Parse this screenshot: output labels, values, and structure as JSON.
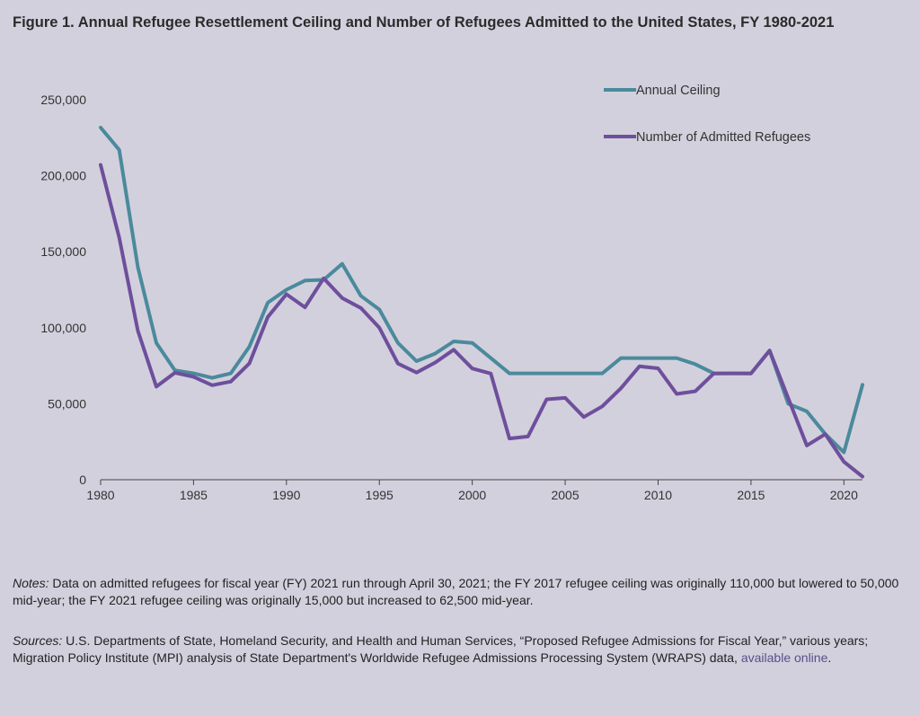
{
  "title": "Figure 1. Annual Refugee Resettlement Ceiling and Number of Refugees Admitted to the United States, FY 1980-2021",
  "notes": {
    "lead": "Notes:",
    "text": " Data on admitted refugees for fiscal year (FY) 2021 run through April 30, 2021; the FY 2017 refugee ceiling was originally 110,000 but lowered to 50,000 mid-year; the FY 2021 refugee ceiling was originally 15,000 but increased to 62,500 mid-year."
  },
  "sources": {
    "lead": "Sources:",
    "text": " U.S. Departments of State, Homeland Security, and Health and Human Services, “Proposed Refugee Admissions for Fiscal Year,” various years; Migration Policy Institute (MPI) analysis of State Department's Worldwide Refugee Admissions Processing System (WRAPS) data, ",
    "link_text": "available online",
    "end": "."
  },
  "chart_data": {
    "type": "line",
    "title": "Figure 1. Annual Refugee Resettlement Ceiling and Number of Refugees Admitted to the United States, FY 1980-2021",
    "xlabel": "",
    "ylabel": "",
    "x": [
      1980,
      1981,
      1982,
      1983,
      1984,
      1985,
      1986,
      1987,
      1988,
      1989,
      1990,
      1991,
      1992,
      1993,
      1994,
      1995,
      1996,
      1997,
      1998,
      1999,
      2000,
      2001,
      2002,
      2003,
      2004,
      2005,
      2006,
      2007,
      2008,
      2009,
      2010,
      2011,
      2012,
      2013,
      2014,
      2015,
      2016,
      2017,
      2018,
      2019,
      2020,
      2021
    ],
    "xlim": [
      1980,
      2021
    ],
    "ylim": [
      0,
      250000
    ],
    "x_ticks": [
      1980,
      1985,
      1990,
      1995,
      2000,
      2005,
      2010,
      2015,
      2020
    ],
    "x_tick_labels": [
      "1980",
      "1985",
      "1990",
      "1995",
      "2000",
      "2005",
      "2010",
      "2015",
      "2020"
    ],
    "y_ticks": [
      0,
      50000,
      100000,
      150000,
      200000,
      250000
    ],
    "y_tick_labels": [
      "0",
      "50,000",
      "100,000",
      "150,000",
      "200,000",
      "250,000"
    ],
    "grid": false,
    "legend_position": "top-right",
    "series": [
      {
        "name": "Annual Ceiling",
        "color": "#4a8a9c",
        "values": [
          231700,
          217000,
          140000,
          90000,
          72000,
          70000,
          67000,
          70000,
          87500,
          116500,
          125000,
          131000,
          131500,
          142000,
          121000,
          112000,
          90000,
          78000,
          83000,
          91000,
          90000,
          80000,
          70000,
          70000,
          70000,
          70000,
          70000,
          70000,
          80000,
          80000,
          80000,
          80000,
          76000,
          70000,
          70000,
          70000,
          85000,
          50000,
          45000,
          30000,
          18000,
          62500
        ]
      },
      {
        "name": "Number of Admitted Refugees",
        "color": "#6e4f9c",
        "values": [
          207116,
          159252,
          98096,
          61218,
          70393,
          67704,
          62146,
          64528,
          76483,
          107070,
          122066,
          113389,
          132531,
          119482,
          112981,
          99974,
          76403,
          70488,
          77080,
          85525,
          73147,
          69886,
          27131,
          28422,
          52868,
          53813,
          41277,
          48282,
          60191,
          74654,
          73311,
          56424,
          58238,
          69926,
          69987,
          69933,
          84994,
          53716,
          22491,
          30000,
          11814,
          2050
        ]
      }
    ]
  }
}
